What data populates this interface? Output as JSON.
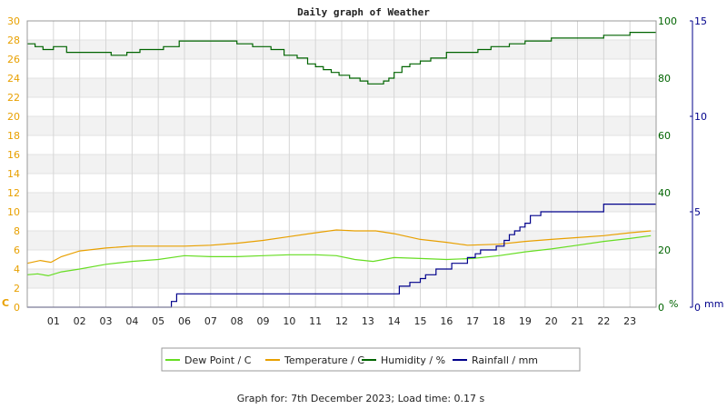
{
  "chart_data": {
    "type": "line",
    "title": "Daily graph of Weather",
    "x_ticks": [
      "01",
      "02",
      "03",
      "04",
      "05",
      "06",
      "07",
      "08",
      "09",
      "10",
      "11",
      "12",
      "13",
      "14",
      "15",
      "16",
      "17",
      "18",
      "19",
      "20",
      "21",
      "22",
      "23"
    ],
    "x_range": [
      0,
      24
    ],
    "axes": {
      "left": {
        "unit": "C",
        "range": [
          0,
          30
        ],
        "ticks": [
          0,
          2,
          4,
          6,
          8,
          10,
          12,
          14,
          16,
          18,
          20,
          22,
          24,
          26,
          28,
          30
        ],
        "color": "#e8a000"
      },
      "right_humidity": {
        "unit": "%",
        "range": [
          0,
          100
        ],
        "ticks": [
          0,
          20,
          40,
          60,
          80,
          100
        ],
        "color": "#006400"
      },
      "right_rain": {
        "unit": "mm",
        "range": [
          0,
          15
        ],
        "ticks": [
          0,
          5,
          10,
          15
        ],
        "color": "#00008b"
      }
    },
    "grid": true,
    "legend_position": "bottom",
    "series": [
      {
        "name": "Dew Point / C",
        "axis": "left",
        "color": "#66dd22",
        "step": false,
        "x": [
          0,
          0.4,
          0.8,
          1.3,
          2,
          3,
          4,
          5,
          6,
          7,
          8,
          9,
          10,
          11,
          11.8,
          12.5,
          13.2,
          14,
          15,
          16,
          17,
          18,
          19,
          20,
          21,
          22,
          23,
          23.8
        ],
        "y": [
          3.4,
          3.5,
          3.3,
          3.7,
          4.0,
          4.5,
          4.8,
          5.0,
          5.4,
          5.3,
          5.3,
          5.4,
          5.5,
          5.5,
          5.4,
          5.0,
          4.8,
          5.2,
          5.1,
          5.0,
          5.1,
          5.4,
          5.8,
          6.1,
          6.5,
          6.9,
          7.2,
          7.5
        ]
      },
      {
        "name": "Temperature / C",
        "axis": "left",
        "color": "#e8a000",
        "step": false,
        "x": [
          0,
          0.5,
          0.9,
          1.3,
          2,
          3,
          4,
          5,
          6,
          7,
          8,
          9,
          10,
          11,
          11.8,
          12.5,
          13.3,
          14,
          15,
          16,
          16.8,
          18,
          19,
          20,
          21,
          22,
          23,
          23.8
        ],
        "y": [
          4.6,
          4.9,
          4.7,
          5.3,
          5.9,
          6.2,
          6.4,
          6.4,
          6.4,
          6.5,
          6.7,
          7.0,
          7.4,
          7.8,
          8.1,
          8.0,
          8.0,
          7.7,
          7.1,
          6.8,
          6.5,
          6.6,
          6.9,
          7.1,
          7.3,
          7.5,
          7.8,
          8.0
        ]
      },
      {
        "name": "Humidity / %",
        "axis": "right_humidity",
        "color": "#006400",
        "step": true,
        "x": [
          0,
          0.3,
          0.6,
          1,
          1.5,
          2.5,
          3.2,
          3.8,
          4.3,
          5.2,
          5.8,
          7,
          8,
          8.6,
          9.3,
          9.8,
          10.3,
          10.7,
          11,
          11.3,
          11.6,
          11.9,
          12.3,
          12.7,
          13,
          13.3,
          13.6,
          13.8,
          14,
          14.3,
          14.6,
          15,
          15.4,
          16,
          16.6,
          17.2,
          17.7,
          18.4,
          19,
          20,
          21,
          22,
          22.5,
          23,
          23.5,
          24
        ],
        "y": [
          92,
          91,
          90,
          91,
          89,
          89,
          88,
          89,
          90,
          91,
          93,
          93,
          92,
          91,
          90,
          88,
          87,
          85,
          84,
          83,
          82,
          81,
          80,
          79,
          78,
          78,
          79,
          80,
          82,
          84,
          85,
          86,
          87,
          89,
          89,
          90,
          91,
          92,
          93,
          94,
          94,
          95,
          95,
          96,
          96,
          96
        ],
        "values_note": ""
      },
      {
        "name": "Rainfall / mm",
        "axis": "right_rain",
        "color": "#00008b",
        "step": true,
        "x": [
          0,
          5.2,
          5.5,
          5.7,
          13.9,
          14.2,
          14.6,
          15,
          15.2,
          15.6,
          16.2,
          16.8,
          17.1,
          17.3,
          17.9,
          18.2,
          18.4,
          18.6,
          18.8,
          19,
          19.2,
          19.6,
          20.5,
          21.5,
          22,
          24
        ],
        "y": [
          0,
          0,
          0.3,
          0.7,
          0.7,
          1.1,
          1.3,
          1.5,
          1.7,
          2.0,
          2.3,
          2.6,
          2.8,
          3.0,
          3.2,
          3.5,
          3.8,
          4.0,
          4.2,
          4.4,
          4.8,
          5.0,
          5.0,
          5.0,
          5.4,
          5.4
        ]
      }
    ]
  },
  "footer": {
    "text": "Graph for: 7th December 2023; Load time: 0.17 s"
  }
}
